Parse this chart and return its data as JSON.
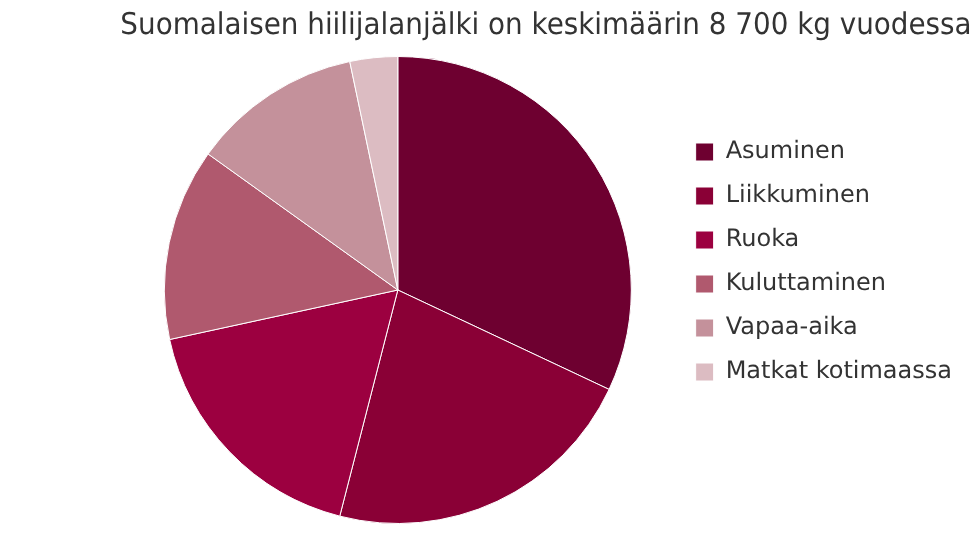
{
  "chart_data": {
    "type": "pie",
    "title": "Suomalaisen hiilijalanjälki on keskimäärin 8 700 kg vuodessa",
    "categories": [
      "Asuminen",
      "Liikkuminen",
      "Ruoka",
      "Kuluttaminen",
      "Vapaa-aika",
      "Matkat kotimaassa"
    ],
    "values": [
      32,
      22,
      17.6,
      13.3,
      11.8,
      3.3
    ],
    "colors": [
      "#6e0030",
      "#8a0036",
      "#9c0040",
      "#b0596e",
      "#c4919b",
      "#dcbcc2"
    ],
    "legend": "right"
  }
}
